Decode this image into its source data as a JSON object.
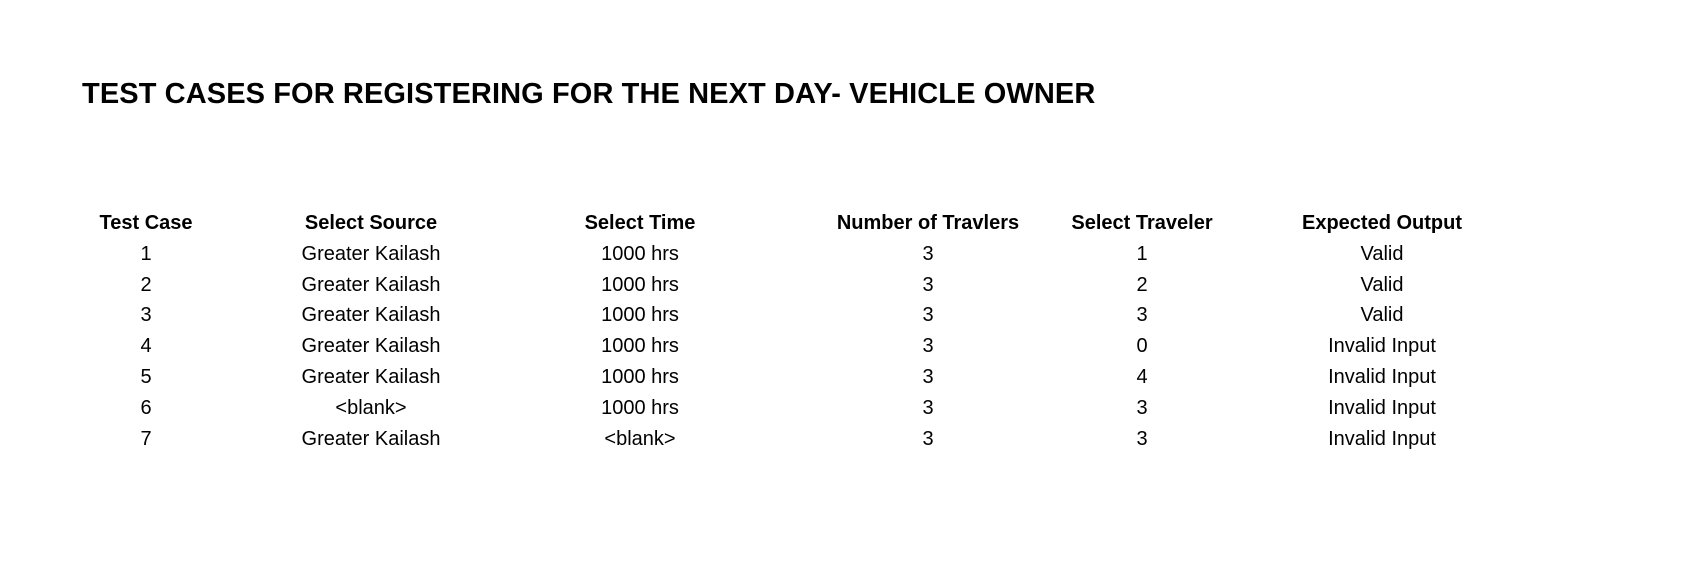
{
  "title": "TEST CASES FOR REGISTERING FOR THE NEXT DAY- VEHICLE OWNER",
  "table": {
    "headers": [
      "Test Case",
      "Select Source",
      "Select Time",
      "Number of Travlers",
      "Select Traveler",
      "Expected Output"
    ],
    "rows": [
      [
        "1",
        "Greater Kailash",
        "1000 hrs",
        "3",
        "1",
        "Valid"
      ],
      [
        "2",
        "Greater Kailash",
        "1000 hrs",
        "3",
        "2",
        "Valid"
      ],
      [
        "3",
        "Greater Kailash",
        "1000 hrs",
        "3",
        "3",
        "Valid"
      ],
      [
        "4",
        "Greater Kailash",
        "1000 hrs",
        "3",
        "0",
        "Invalid Input"
      ],
      [
        "5",
        "Greater Kailash",
        "1000 hrs",
        "3",
        "4",
        "Invalid Input"
      ],
      [
        "6",
        "<blank>",
        "1000 hrs",
        "3",
        "3",
        "Invalid Input"
      ],
      [
        "7",
        "Greater Kailash",
        "<blank>",
        "3",
        "3",
        "Invalid Input"
      ]
    ]
  }
}
